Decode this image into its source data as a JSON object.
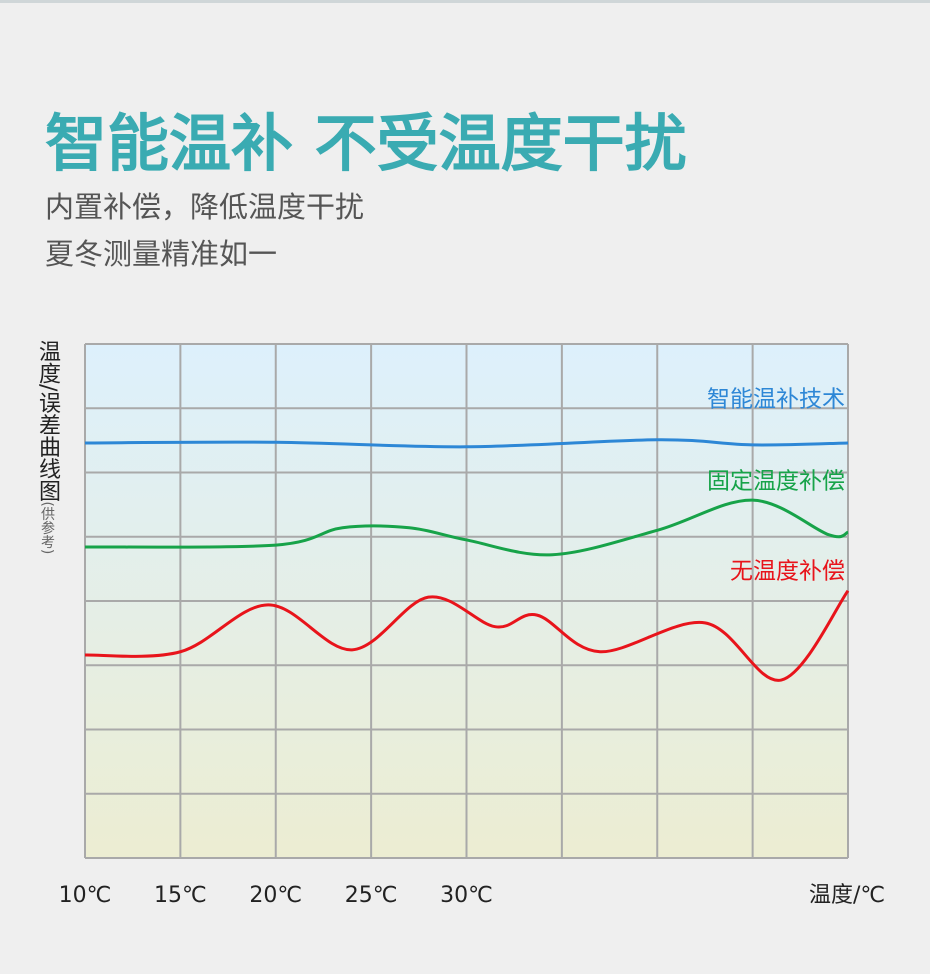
{
  "header": {
    "title": "智能温补 不受温度干扰",
    "lines": [
      "内置补偿，降低温度干扰",
      "夏冬测量精准如一"
    ]
  },
  "chart_data": {
    "type": "line",
    "y_label": "温度/误差曲线图",
    "y_label_note": "(供参考)",
    "x_label": "温度/℃",
    "xlim": [
      10,
      50
    ],
    "ylim": [
      0,
      8
    ],
    "xticks": [
      {
        "value": 10,
        "label": "10℃"
      },
      {
        "value": 15,
        "label": "15℃"
      },
      {
        "value": 20,
        "label": "20℃"
      },
      {
        "value": 25,
        "label": "25℃"
      },
      {
        "value": 30,
        "label": "30℃"
      },
      {
        "value": 35,
        "label": null
      },
      {
        "value": 40,
        "label": null
      },
      {
        "value": 45,
        "label": null
      },
      {
        "value": 50,
        "label": null
      }
    ],
    "yticks": [
      {
        "value": 0,
        "label": null
      },
      {
        "value": 1,
        "label": null
      },
      {
        "value": 2,
        "label": null
      },
      {
        "value": 3,
        "label": null
      },
      {
        "value": 4,
        "label": null
      },
      {
        "value": 5,
        "label": null
      },
      {
        "value": 6,
        "label": null
      },
      {
        "value": 7,
        "label": null
      },
      {
        "value": 8,
        "label": null
      }
    ],
    "grid": true,
    "series": [
      {
        "name": "智能温补技术",
        "color": "#2d87d6",
        "x": [
          10,
          20,
          30,
          40,
          45,
          50
        ],
        "values": [
          6.46,
          6.47,
          6.4,
          6.51,
          6.43,
          6.46
        ]
      },
      {
        "name": "固定温度补偿",
        "color": "#17a349",
        "x": [
          10,
          20,
          23.5,
          27,
          30,
          34.5,
          40,
          45,
          49,
          50
        ],
        "values": [
          4.84,
          4.87,
          5.14,
          5.14,
          4.95,
          4.72,
          5.1,
          5.57,
          5.03,
          5.07
        ]
      },
      {
        "name": "无温度补偿",
        "color": "#e8141b",
        "x": [
          10,
          15,
          19.6,
          24,
          28,
          31.5,
          33.7,
          37,
          42.5,
          46.5,
          50
        ],
        "values": [
          3.16,
          3.21,
          3.94,
          3.24,
          4.06,
          3.6,
          3.78,
          3.21,
          3.66,
          2.77,
          4.16
        ]
      }
    ]
  }
}
